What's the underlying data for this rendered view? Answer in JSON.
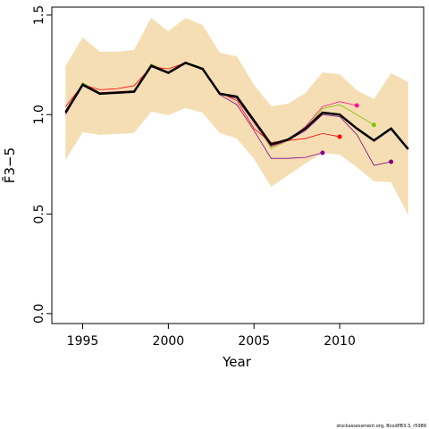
{
  "chart_data": {
    "type": "line",
    "xlabel": "Year",
    "ylabel": "F̄3−5",
    "footnote": "stockassessment.org, BcodPB3.3, r5989",
    "x": [
      1994,
      1995,
      1996,
      1997,
      1998,
      1999,
      2000,
      2001,
      2002,
      2003,
      2004,
      2005,
      2006,
      2007,
      2008,
      2009,
      2010,
      2011,
      2012,
      2013,
      2014
    ],
    "band": {
      "color": "#f5deb3",
      "upper": [
        1.244,
        1.388,
        1.316,
        1.316,
        1.325,
        1.486,
        1.419,
        1.486,
        1.45,
        1.311,
        1.293,
        1.15,
        1.042,
        1.055,
        1.109,
        1.212,
        1.203,
        1.123,
        1.078,
        1.208,
        1.163
      ],
      "lower": [
        0.772,
        0.912,
        0.898,
        0.903,
        0.907,
        1.015,
        0.997,
        1.033,
        1.01,
        0.907,
        0.88,
        0.777,
        0.638,
        0.696,
        0.754,
        0.808,
        0.799,
        0.736,
        0.665,
        0.66,
        0.494
      ]
    },
    "series": [
      {
        "color": "#800080",
        "values": [
          1.0,
          1.15,
          1.105,
          1.11,
          1.115,
          1.245,
          1.21,
          1.26,
          1.23,
          1.105,
          1.08,
          0.96,
          0.84,
          0.87,
          0.92,
          1.0,
          0.99,
          0.9,
          0.745,
          0.763,
          null
        ]
      },
      {
        "color": "#7fc400",
        "values": [
          1.01,
          1.16,
          1.11,
          1.115,
          1.12,
          1.255,
          1.215,
          1.265,
          1.235,
          1.11,
          1.09,
          0.97,
          0.83,
          0.87,
          0.93,
          1.03,
          1.05,
          1.0,
          0.948,
          null,
          null
        ]
      },
      {
        "color": "#ff1493",
        "values": [
          1.01,
          1.155,
          1.11,
          1.115,
          1.12,
          1.25,
          1.215,
          1.265,
          1.23,
          1.11,
          1.09,
          0.96,
          0.84,
          0.87,
          0.94,
          1.04,
          1.065,
          1.046,
          null,
          null,
          null
        ]
      },
      {
        "color": "#ff0000",
        "values": [
          1.04,
          1.15,
          1.125,
          1.13,
          1.145,
          1.24,
          1.23,
          1.26,
          1.225,
          1.11,
          1.07,
          0.93,
          0.86,
          0.87,
          0.88,
          0.905,
          0.889,
          null,
          null,
          null,
          null
        ]
      },
      {
        "color": "#8b008b",
        "values": [
          1.02,
          1.155,
          1.11,
          1.11,
          1.115,
          1.25,
          1.21,
          1.26,
          1.225,
          1.1,
          1.05,
          0.92,
          0.78,
          0.78,
          0.785,
          0.808,
          null,
          null,
          null,
          null,
          null
        ]
      },
      {
        "color": "#000000",
        "values": [
          1.01,
          1.15,
          1.105,
          1.11,
          1.115,
          1.245,
          1.21,
          1.26,
          1.23,
          1.105,
          1.09,
          0.97,
          0.85,
          0.875,
          0.93,
          1.01,
          1.0,
          0.93,
          0.87,
          0.93,
          0.826
        ]
      }
    ],
    "xlim": [
      1993.2,
      2014.9
    ],
    "xticks": [
      1995,
      2000,
      2005,
      2010
    ],
    "ylim": [
      -0.05,
      1.54
    ],
    "yticks": [
      {
        "value": 0,
        "label": "0.0"
      },
      0.5,
      {
        "value": 1,
        "label": "1.0"
      },
      1.5
    ]
  }
}
